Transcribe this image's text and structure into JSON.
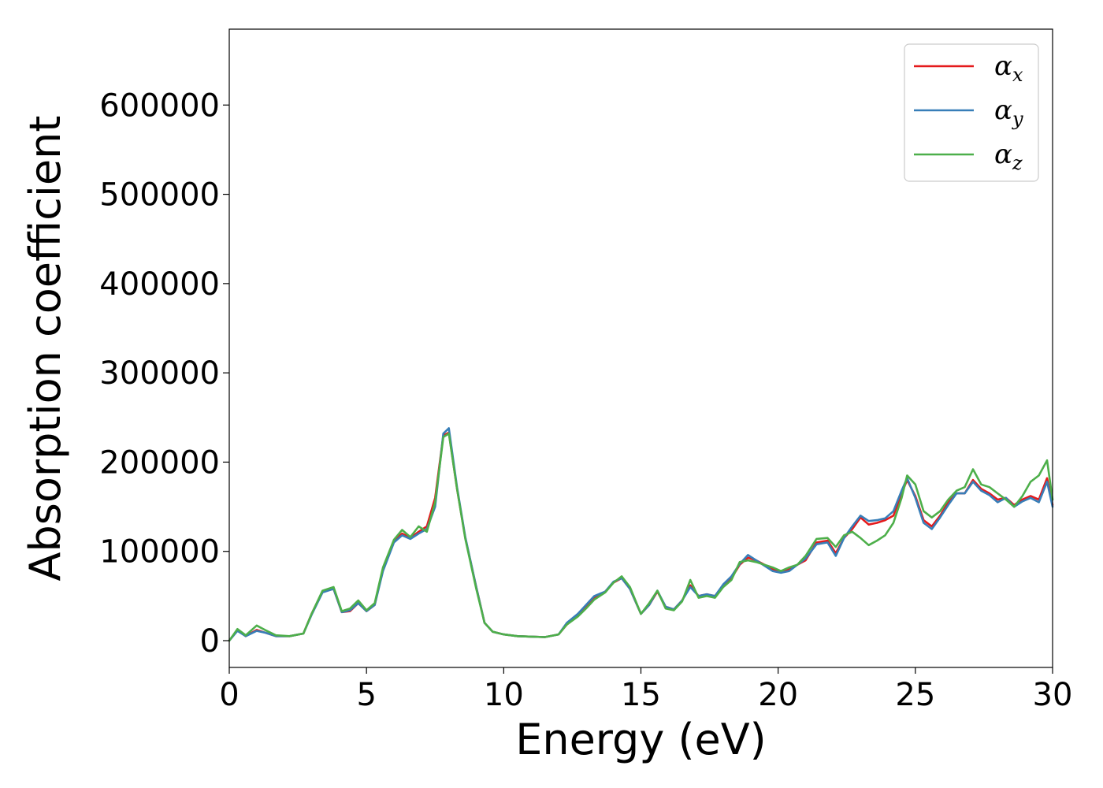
{
  "chart_data": {
    "type": "line",
    "xlabel": "Energy (eV)",
    "ylabel": "Absorption coefficient",
    "xlim": [
      0,
      30
    ],
    "ylim": [
      -30000,
      685000
    ],
    "xticks": [
      0,
      5,
      10,
      15,
      20,
      25,
      30
    ],
    "xtick_labels": [
      "0",
      "5",
      "10",
      "15",
      "20",
      "25",
      "30"
    ],
    "yticks": [
      0,
      100000,
      200000,
      300000,
      400000,
      500000,
      600000
    ],
    "ytick_labels": [
      "0",
      "100000",
      "200000",
      "300000",
      "400000",
      "500000",
      "600000"
    ],
    "grid": false,
    "legend_position": "top-right",
    "series": [
      {
        "name": "x",
        "color": "#e41a1c",
        "x": [
          0,
          0.3,
          0.6,
          1.0,
          1.3,
          1.7,
          2.2,
          2.7,
          3.0,
          3.4,
          3.8,
          4.1,
          4.4,
          4.7,
          5.0,
          5.3,
          5.6,
          6.0,
          6.3,
          6.6,
          6.9,
          7.2,
          7.5,
          7.8,
          8.0,
          8.3,
          8.6,
          9.0,
          9.3,
          9.6,
          10.0,
          10.5,
          11.0,
          11.5,
          12.0,
          12.3,
          12.7,
          13.0,
          13.3,
          13.7,
          14.0,
          14.3,
          14.6,
          15.0,
          15.3,
          15.6,
          15.9,
          16.2,
          16.5,
          16.8,
          17.1,
          17.4,
          17.7,
          18.0,
          18.3,
          18.6,
          18.9,
          19.2,
          19.5,
          19.8,
          20.1,
          20.4,
          20.7,
          21.0,
          21.4,
          21.8,
          22.1,
          22.4,
          22.7,
          23.0,
          23.3,
          23.6,
          23.9,
          24.2,
          24.5,
          24.7,
          25.0,
          25.3,
          25.6,
          25.9,
          26.2,
          26.5,
          26.8,
          27.1,
          27.4,
          27.7,
          28.0,
          28.3,
          28.6,
          28.9,
          29.2,
          29.5,
          29.8,
          30.0
        ],
        "y": [
          0,
          12000,
          5000,
          12000,
          9000,
          5000,
          5000,
          8000,
          30000,
          55000,
          58000,
          32000,
          33000,
          42000,
          33000,
          40000,
          80000,
          112000,
          120000,
          115000,
          122000,
          128000,
          160000,
          230000,
          233000,
          170000,
          115000,
          60000,
          20000,
          10000,
          7000,
          5000,
          4500,
          4000,
          7000,
          18000,
          28000,
          38000,
          48000,
          55000,
          65000,
          70000,
          58000,
          30000,
          40000,
          55000,
          38000,
          35000,
          45000,
          62000,
          50000,
          52000,
          50000,
          62000,
          70000,
          85000,
          93000,
          90000,
          85000,
          80000,
          77000,
          80000,
          85000,
          90000,
          110000,
          112000,
          98000,
          115000,
          125000,
          138000,
          130000,
          132000,
          135000,
          140000,
          165000,
          180000,
          162000,
          135000,
          128000,
          140000,
          155000,
          165000,
          165000,
          180000,
          170000,
          165000,
          158000,
          160000,
          152000,
          158000,
          162000,
          158000,
          182000,
          152000
        ]
      },
      {
        "name": "y",
        "color": "#377eb8",
        "x": [
          0,
          0.3,
          0.6,
          1.0,
          1.3,
          1.7,
          2.2,
          2.7,
          3.0,
          3.4,
          3.8,
          4.1,
          4.4,
          4.7,
          5.0,
          5.3,
          5.6,
          6.0,
          6.3,
          6.6,
          6.9,
          7.2,
          7.5,
          7.8,
          8.0,
          8.3,
          8.6,
          9.0,
          9.3,
          9.6,
          10.0,
          10.5,
          11.0,
          11.5,
          12.0,
          12.3,
          12.7,
          13.0,
          13.3,
          13.7,
          14.0,
          14.3,
          14.6,
          15.0,
          15.3,
          15.6,
          15.9,
          16.2,
          16.5,
          16.8,
          17.1,
          17.4,
          17.7,
          18.0,
          18.3,
          18.6,
          18.9,
          19.2,
          19.5,
          19.8,
          20.1,
          20.4,
          20.7,
          21.0,
          21.4,
          21.8,
          22.1,
          22.4,
          22.7,
          23.0,
          23.3,
          23.6,
          23.9,
          24.2,
          24.5,
          24.7,
          25.0,
          25.3,
          25.6,
          25.9,
          26.2,
          26.5,
          26.8,
          27.1,
          27.4,
          27.7,
          28.0,
          28.3,
          28.6,
          28.9,
          29.2,
          29.5,
          29.8,
          30.0
        ],
        "y": [
          0,
          11000,
          5000,
          11000,
          9000,
          5000,
          5000,
          8000,
          29000,
          54000,
          58000,
          32000,
          34000,
          42000,
          33000,
          40000,
          78000,
          110000,
          118000,
          114000,
          120000,
          125000,
          150000,
          232000,
          238000,
          172000,
          116000,
          60000,
          20000,
          10000,
          7000,
          5000,
          4500,
          4000,
          7000,
          20000,
          30000,
          40000,
          50000,
          55000,
          66000,
          70000,
          58000,
          30000,
          40000,
          56000,
          38000,
          35000,
          45000,
          60000,
          50000,
          52000,
          50000,
          63000,
          72000,
          86000,
          96000,
          90000,
          84000,
          78000,
          76000,
          78000,
          85000,
          92000,
          108000,
          110000,
          95000,
          115000,
          128000,
          140000,
          134000,
          135000,
          137000,
          145000,
          168000,
          182000,
          160000,
          132000,
          125000,
          138000,
          152000,
          165000,
          165000,
          178000,
          168000,
          163000,
          155000,
          160000,
          150000,
          156000,
          160000,
          155000,
          178000,
          150000
        ]
      },
      {
        "name": "z",
        "color": "#4daf4a",
        "x": [
          0,
          0.3,
          0.6,
          1.0,
          1.3,
          1.7,
          2.2,
          2.7,
          3.0,
          3.4,
          3.8,
          4.1,
          4.4,
          4.7,
          5.0,
          5.3,
          5.6,
          6.0,
          6.3,
          6.6,
          6.9,
          7.2,
          7.5,
          7.8,
          8.0,
          8.3,
          8.6,
          9.0,
          9.3,
          9.6,
          10.0,
          10.5,
          11.0,
          11.5,
          12.0,
          12.3,
          12.7,
          13.0,
          13.3,
          13.7,
          14.0,
          14.3,
          14.6,
          15.0,
          15.3,
          15.6,
          15.9,
          16.2,
          16.5,
          16.8,
          17.1,
          17.4,
          17.7,
          18.0,
          18.3,
          18.6,
          18.9,
          19.2,
          19.5,
          19.8,
          20.1,
          20.4,
          20.7,
          21.0,
          21.4,
          21.8,
          22.1,
          22.4,
          22.7,
          23.0,
          23.3,
          23.6,
          23.9,
          24.2,
          24.5,
          24.7,
          25.0,
          25.3,
          25.6,
          25.9,
          26.2,
          26.5,
          26.8,
          27.1,
          27.4,
          27.7,
          28.0,
          28.3,
          28.6,
          28.9,
          29.2,
          29.5,
          29.8,
          30.0
        ],
        "y": [
          0,
          13000,
          6000,
          17000,
          12000,
          6000,
          5000,
          8000,
          30000,
          56000,
          60000,
          33000,
          36000,
          45000,
          34000,
          42000,
          82000,
          113000,
          124000,
          116000,
          128000,
          122000,
          155000,
          228000,
          232000,
          170000,
          114000,
          58000,
          20000,
          10000,
          7000,
          5000,
          4500,
          4000,
          7000,
          18000,
          27000,
          36000,
          46000,
          54000,
          65000,
          72000,
          60000,
          30000,
          42000,
          56000,
          36000,
          34000,
          44000,
          68000,
          48000,
          50000,
          48000,
          60000,
          68000,
          88000,
          90000,
          88000,
          85000,
          82000,
          78000,
          82000,
          85000,
          95000,
          114000,
          115000,
          105000,
          118000,
          122000,
          115000,
          107000,
          112000,
          118000,
          132000,
          160000,
          185000,
          175000,
          145000,
          138000,
          145000,
          158000,
          168000,
          172000,
          192000,
          175000,
          172000,
          165000,
          158000,
          150000,
          162000,
          178000,
          185000,
          202000,
          158000
        ]
      }
    ]
  }
}
